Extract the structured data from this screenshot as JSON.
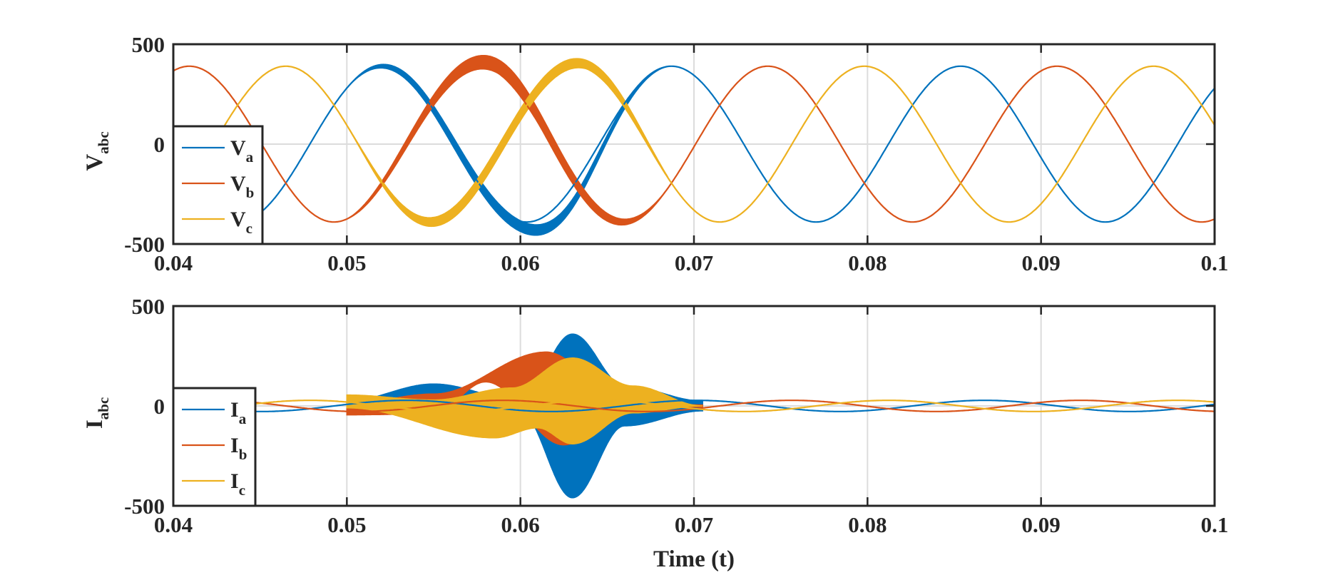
{
  "colors": {
    "Va": "#0072BD",
    "Vb": "#D95319",
    "Vc": "#EDB120",
    "axis": "#262626",
    "grid": "#DCDCDC",
    "background": "#FFFFFF"
  },
  "chart_data": [
    {
      "type": "line",
      "id": "voltage",
      "ylabel_main": "V",
      "ylabel_sub": "abc",
      "xlabel": "",
      "xlim": [
        0.04,
        0.1
      ],
      "ylim": [
        -500,
        500
      ],
      "xticks": [
        0.04,
        0.05,
        0.06,
        0.07,
        0.08,
        0.09,
        0.1
      ],
      "xtick_labels": [
        "0.04",
        "0.05",
        "0.06",
        "0.07",
        "0.08",
        "0.09",
        "0.1"
      ],
      "yticks": [
        -500,
        0,
        500
      ],
      "ytick_labels": [
        "-500",
        "0",
        "500"
      ],
      "grid": true,
      "legend_position": "lower-left",
      "fundamental_hz": 60,
      "amplitude": 390,
      "series": [
        {
          "name": "Va",
          "label_main": "V",
          "label_sub": "a",
          "color_key": "Va",
          "phase_deg": 46,
          "band": {
            "x_start": 0.05,
            "x_end": 0.0685,
            "max_thickness": 55,
            "extra_dip": -85,
            "dip_at": 0.0628
          }
        },
        {
          "name": "Vb",
          "label_main": "V",
          "label_sub": "b",
          "color_key": "Vb",
          "phase_deg": -74,
          "band": {
            "x_start": 0.05,
            "x_end": 0.0685,
            "max_thickness": 70,
            "extra_dip": 40,
            "dip_at": 0.0598
          }
        },
        {
          "name": "Vc",
          "label_main": "V",
          "label_sub": "c",
          "color_key": "Vc",
          "phase_deg": 166,
          "band": {
            "x_start": 0.05,
            "x_end": 0.0685,
            "max_thickness": 60,
            "extra_dip": 25,
            "dip_at": 0.065
          }
        }
      ]
    },
    {
      "type": "line",
      "id": "current",
      "ylabel_main": "I",
      "ylabel_sub": "abc",
      "xlabel": "Time (t)",
      "xlim": [
        0.04,
        0.1
      ],
      "ylim": [
        -500,
        500
      ],
      "xticks": [
        0.04,
        0.05,
        0.06,
        0.07,
        0.08,
        0.09,
        0.1
      ],
      "xtick_labels": [
        "0.04",
        "0.05",
        "0.06",
        "0.07",
        "0.08",
        "0.09",
        "0.1"
      ],
      "yticks": [
        -500,
        0,
        500
      ],
      "ytick_labels": [
        "-500",
        "0",
        "500"
      ],
      "grid": true,
      "legend_position": "lower-left",
      "fundamental_hz": 60,
      "amplitude": 28,
      "series": [
        {
          "name": "Ia",
          "label_main": "I",
          "label_sub": "a",
          "color_key": "Va",
          "phase_deg": 16,
          "lobe": {
            "x_start": 0.05,
            "x_end": 0.0705,
            "upper": [
              [
                0.05,
                25
              ],
              [
                0.055,
                110
              ],
              [
                0.06,
                30
              ],
              [
                0.063,
                360
              ],
              [
                0.066,
                100
              ],
              [
                0.0705,
                25
              ]
            ],
            "lower": [
              [
                0.05,
                -25
              ],
              [
                0.055,
                40
              ],
              [
                0.06,
                -30
              ],
              [
                0.063,
                -460
              ],
              [
                0.066,
                -100
              ],
              [
                0.0705,
                -25
              ]
            ]
          }
        },
        {
          "name": "Ib",
          "label_main": "I",
          "label_sub": "b",
          "color_key": "Vb",
          "phase_deg": -104,
          "lobe": {
            "x_start": 0.05,
            "x_end": 0.0705,
            "upper": [
              [
                0.05,
                10
              ],
              [
                0.055,
                60
              ],
              [
                0.0615,
                270
              ],
              [
                0.0645,
                150
              ],
              [
                0.067,
                20
              ],
              [
                0.0705,
                5
              ]
            ],
            "lower": [
              [
                0.05,
                -45
              ],
              [
                0.055,
                -40
              ],
              [
                0.058,
                120
              ],
              [
                0.0625,
                -195
              ],
              [
                0.066,
                -20
              ],
              [
                0.0705,
                -5
              ]
            ]
          }
        },
        {
          "name": "Ic",
          "label_main": "I",
          "label_sub": "c",
          "color_key": "Vc",
          "phase_deg": 136,
          "lobe": {
            "x_start": 0.05,
            "x_end": 0.0705,
            "upper": [
              [
                0.05,
                55
              ],
              [
                0.055,
                30
              ],
              [
                0.0595,
                90
              ],
              [
                0.063,
                240
              ],
              [
                0.0665,
                100
              ],
              [
                0.0705,
                0
              ]
            ],
            "lower": [
              [
                0.05,
                -10
              ],
              [
                0.0585,
                -160
              ],
              [
                0.061,
                -110
              ],
              [
                0.063,
                -190
              ],
              [
                0.0665,
                -35
              ],
              [
                0.0705,
                0
              ]
            ]
          }
        }
      ]
    }
  ]
}
